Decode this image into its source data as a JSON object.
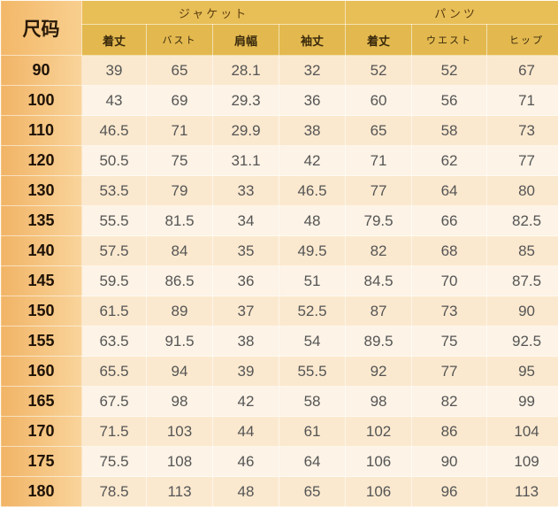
{
  "size_label": "尺码",
  "groups": [
    "ジャケット",
    "パンツ"
  ],
  "columns": [
    "着丈",
    "バスト",
    "肩幅",
    "袖丈",
    "着丈",
    "ウエスト",
    "ヒップ"
  ],
  "rows": [
    [
      "90",
      "39",
      "65",
      "28.1",
      "32",
      "52",
      "52",
      "67"
    ],
    [
      "100",
      "43",
      "69",
      "29.3",
      "36",
      "60",
      "56",
      "71"
    ],
    [
      "110",
      "46.5",
      "71",
      "29.9",
      "38",
      "65",
      "58",
      "73"
    ],
    [
      "120",
      "50.5",
      "75",
      "31.1",
      "42",
      "71",
      "62",
      "77"
    ],
    [
      "130",
      "53.5",
      "79",
      "33",
      "46.5",
      "77",
      "64",
      "80"
    ],
    [
      "135",
      "55.5",
      "81.5",
      "34",
      "48",
      "79.5",
      "66",
      "82.5"
    ],
    [
      "140",
      "57.5",
      "84",
      "35",
      "49.5",
      "82",
      "68",
      "85"
    ],
    [
      "145",
      "59.5",
      "86.5",
      "36",
      "51",
      "84.5",
      "70",
      "87.5"
    ],
    [
      "150",
      "61.5",
      "89",
      "37",
      "52.5",
      "87",
      "73",
      "90"
    ],
    [
      "155",
      "63.5",
      "91.5",
      "38",
      "54",
      "89.5",
      "75",
      "92.5"
    ],
    [
      "160",
      "65.5",
      "94",
      "39",
      "55.5",
      "92",
      "77",
      "95"
    ],
    [
      "165",
      "67.5",
      "98",
      "42",
      "58",
      "98",
      "82",
      "99"
    ],
    [
      "170",
      "71.5",
      "103",
      "44",
      "61",
      "102",
      "86",
      "104"
    ],
    [
      "175",
      "75.5",
      "108",
      "46",
      "64",
      "106",
      "90",
      "109"
    ],
    [
      "180",
      "78.5",
      "113",
      "48",
      "65",
      "106",
      "96",
      "113"
    ]
  ]
}
